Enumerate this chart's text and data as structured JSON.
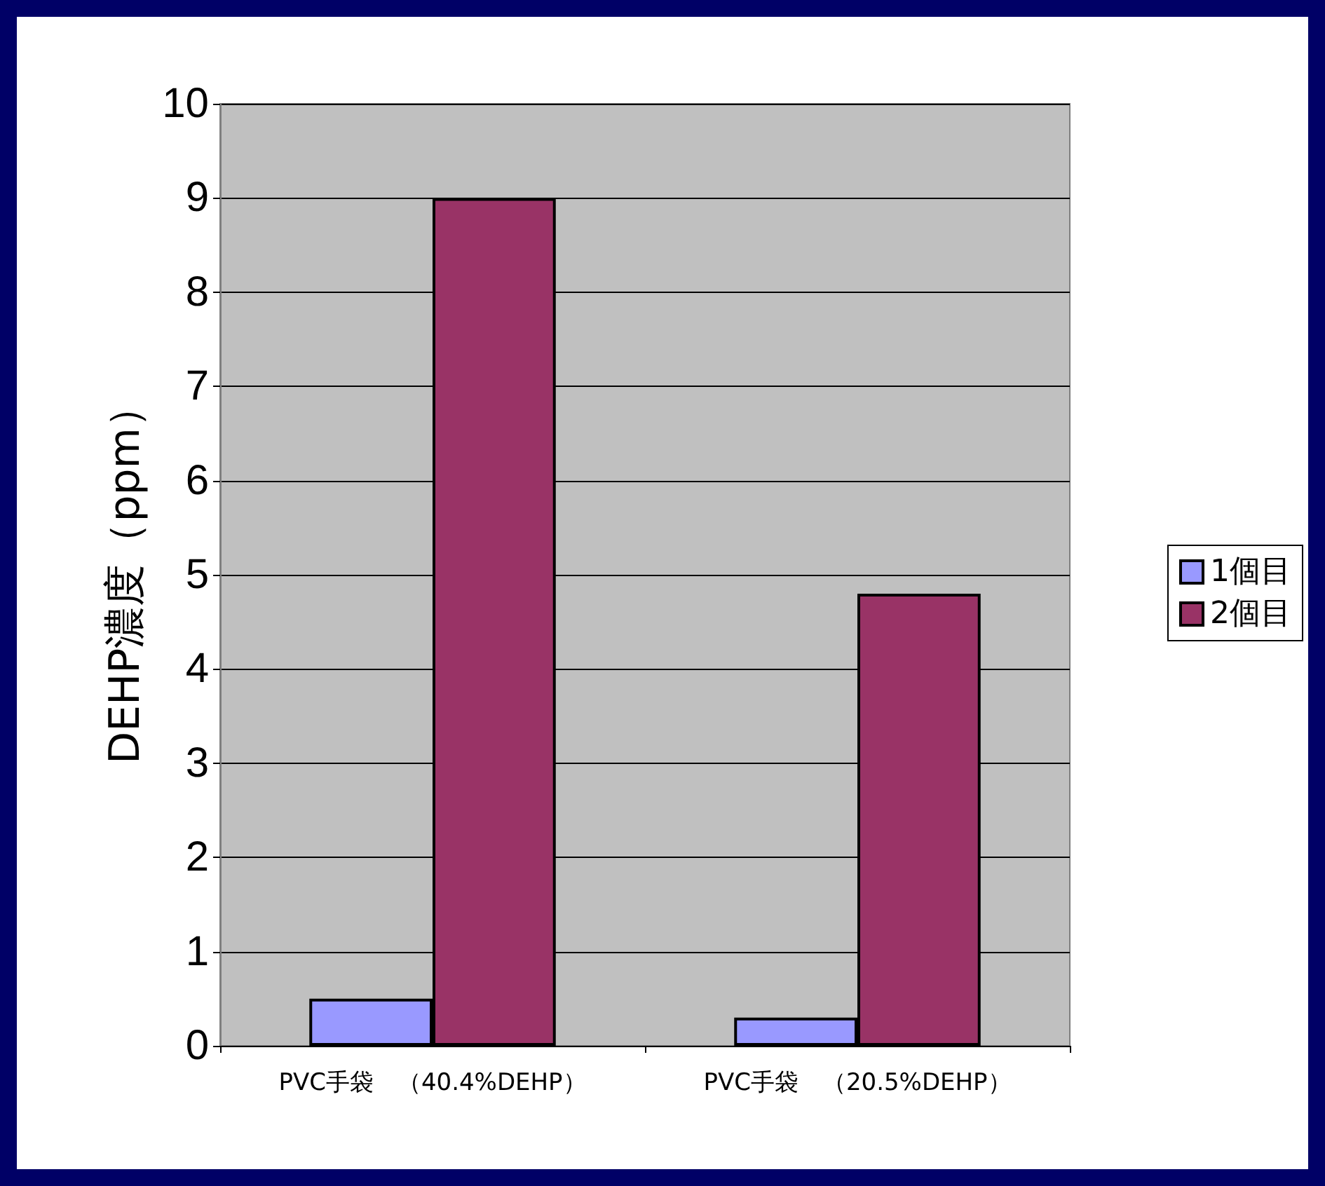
{
  "chart_data": {
    "type": "bar",
    "ylabel": "DEHP濃度（ppm）",
    "categories": [
      "PVC手袋　（40.4%DEHP）",
      "PVC手袋　（20.5%DEHP）"
    ],
    "series": [
      {
        "name": "1個目",
        "color": "#9999ff",
        "values": [
          0.5,
          0.3
        ]
      },
      {
        "name": "2個目",
        "color": "#993366",
        "values": [
          9.0,
          4.8
        ]
      }
    ],
    "ylim": [
      0,
      10
    ],
    "yticks": [
      0,
      1,
      2,
      3,
      4,
      5,
      6,
      7,
      8,
      9,
      10
    ],
    "grid": "y",
    "legend": "right"
  }
}
